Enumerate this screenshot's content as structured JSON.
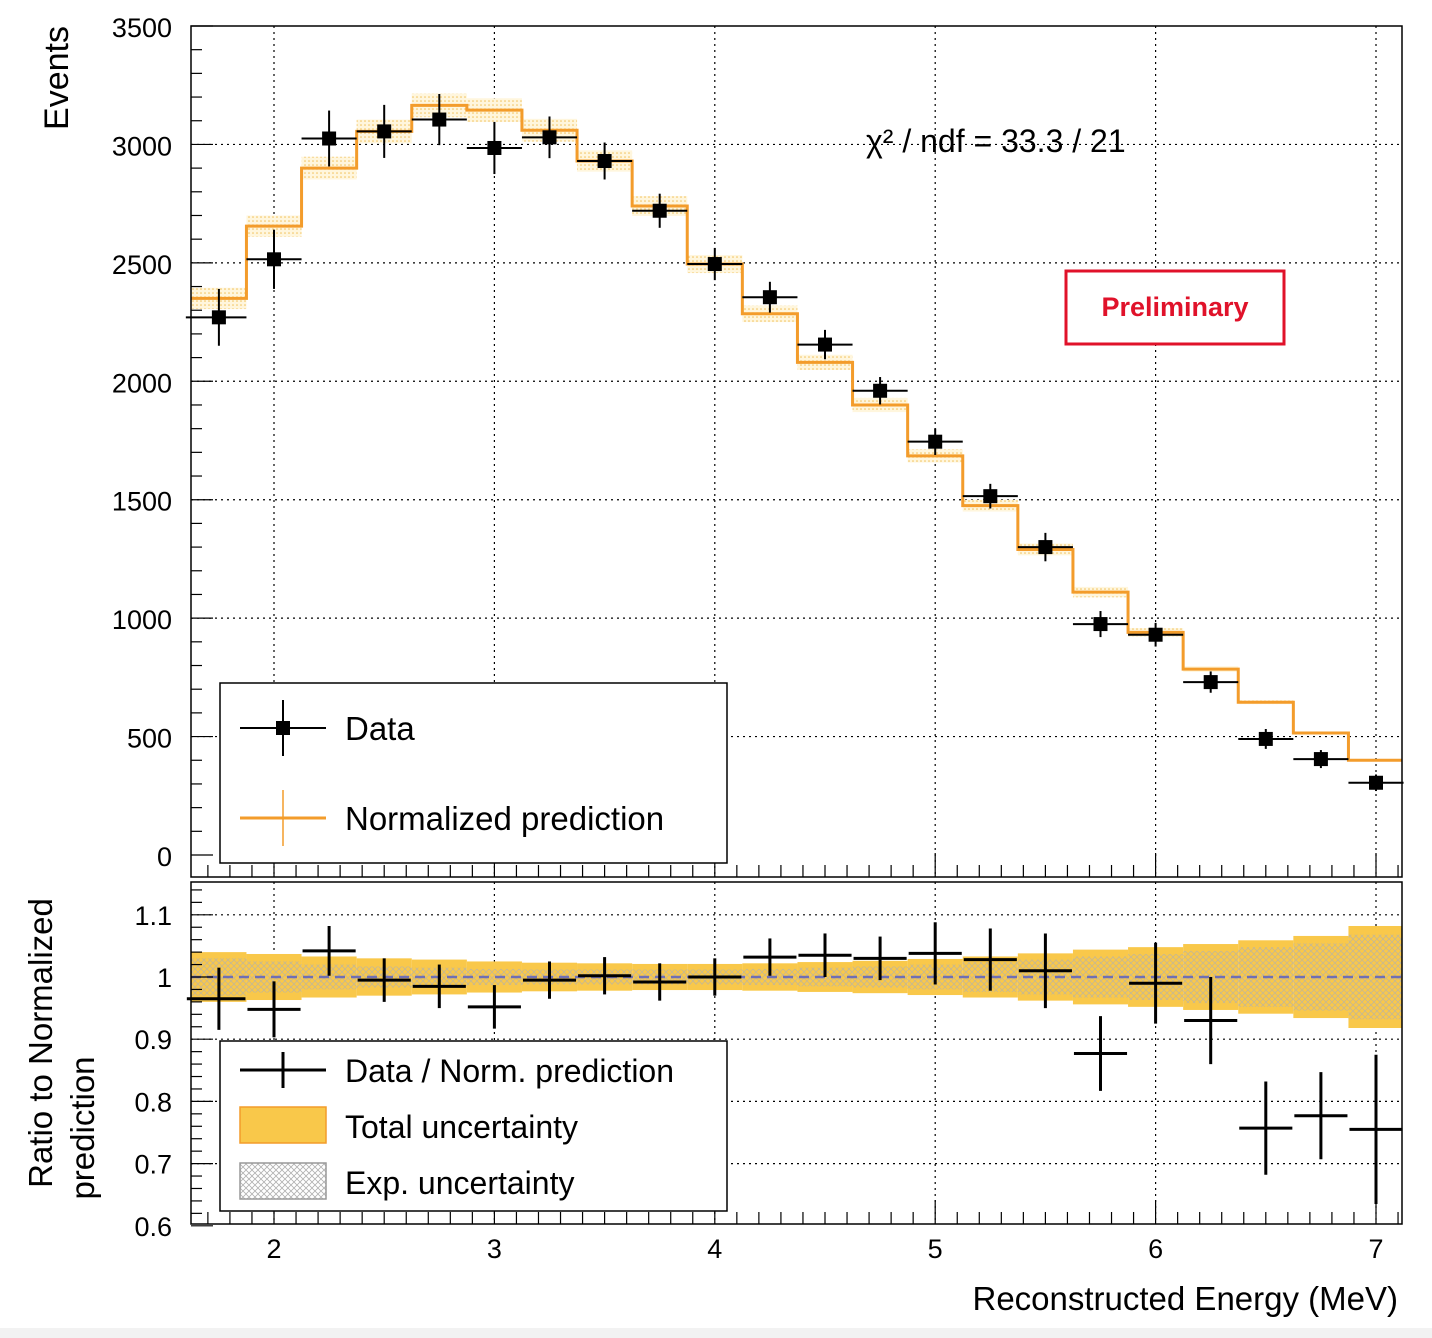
{
  "chart_data": [
    {
      "type": "step-histogram",
      "ylabel": "Events",
      "ylim": [
        0,
        3500
      ],
      "xlim": [
        1.6,
        7.1
      ],
      "x_ticks": [
        2,
        3,
        4,
        5,
        6,
        7
      ],
      "y_ticks": [
        0,
        500,
        1000,
        1500,
        2000,
        2500,
        3000,
        3500
      ],
      "bin_centers": [
        1.75,
        2.0,
        2.25,
        2.5,
        2.75,
        3.0,
        3.25,
        3.5,
        3.75,
        4.0,
        4.25,
        4.5,
        4.75,
        5.0,
        5.25,
        5.5,
        5.75,
        6.0,
        6.25,
        6.5,
        6.75,
        7.0
      ],
      "bin_edges": [
        1.6,
        1.875,
        2.125,
        2.375,
        2.625,
        2.875,
        3.125,
        3.375,
        3.625,
        3.875,
        4.125,
        4.375,
        4.625,
        4.875,
        5.125,
        5.375,
        5.625,
        5.875,
        6.125,
        6.375,
        6.625,
        6.875,
        7.125
      ],
      "series": [
        {
          "name": "Data",
          "values": [
            2270,
            2515,
            3025,
            3055,
            3105,
            2985,
            3030,
            2930,
            2720,
            2495,
            2355,
            2155,
            1960,
            1745,
            1515,
            1300,
            975,
            930,
            730,
            490,
            405,
            305
          ],
          "errors": [
            120,
            125,
            118,
            112,
            108,
            110,
            88,
            78,
            72,
            68,
            65,
            62,
            58,
            56,
            52,
            60,
            55,
            50,
            45,
            42,
            38,
            35
          ]
        },
        {
          "name": "Normalized prediction",
          "values": [
            2350,
            2655,
            2900,
            3055,
            3165,
            3145,
            3060,
            2930,
            2740,
            2495,
            2285,
            2080,
            1900,
            1685,
            1475,
            1290,
            1110,
            940,
            785,
            645,
            515,
            400
          ],
          "band": [
            45,
            45,
            48,
            50,
            50,
            50,
            48,
            45,
            42,
            38,
            35,
            32,
            30,
            28,
            25,
            25,
            22,
            18,
            12,
            8,
            6,
            5
          ]
        }
      ],
      "annotation": "χ² / ndf = 33.3 / 21",
      "stamp": "Preliminary",
      "legend": {
        "position": "bottom-left",
        "entries": [
          "Data",
          "Normalized prediction"
        ]
      }
    },
    {
      "type": "ratio",
      "xlabel": "Reconstructed Energy (MeV)",
      "ylabel_line1": "Ratio to Normalized",
      "ylabel_line2": "prediction",
      "ylim": [
        0.6,
        1.15
      ],
      "x_ticks": [
        2,
        3,
        4,
        5,
        6,
        7
      ],
      "y_ticks": [
        0.6,
        0.7,
        0.8,
        0.9,
        1.0,
        1.1
      ],
      "reference_line": 1.0,
      "ratio_values": [
        0.965,
        0.948,
        1.042,
        0.995,
        0.985,
        0.952,
        0.995,
        1.002,
        0.992,
        1.0,
        1.032,
        1.035,
        1.03,
        1.038,
        1.028,
        1.01,
        0.877,
        0.99,
        0.93,
        0.757,
        0.777,
        0.755
      ],
      "ratio_errors": [
        0.05,
        0.045,
        0.04,
        0.035,
        0.035,
        0.035,
        0.03,
        0.03,
        0.03,
        0.03,
        0.03,
        0.035,
        0.035,
        0.05,
        0.05,
        0.06,
        0.06,
        0.065,
        0.07,
        0.075,
        0.07,
        0.12
      ],
      "total_uncertainty_halfwidth": [
        0.04,
        0.037,
        0.033,
        0.03,
        0.028,
        0.025,
        0.023,
        0.022,
        0.021,
        0.021,
        0.022,
        0.024,
        0.026,
        0.029,
        0.033,
        0.038,
        0.044,
        0.048,
        0.053,
        0.059,
        0.066,
        0.082
      ],
      "exp_uncertainty_halfwidth": [
        0.03,
        0.025,
        0.02,
        0.017,
        0.015,
        0.013,
        0.012,
        0.012,
        0.012,
        0.012,
        0.013,
        0.015,
        0.017,
        0.02,
        0.024,
        0.028,
        0.033,
        0.037,
        0.042,
        0.048,
        0.054,
        0.068
      ],
      "legend": {
        "position": "bottom-left",
        "entries": [
          "Data / Norm. prediction",
          "Total uncertainty",
          "Exp. uncertainty"
        ]
      }
    }
  ],
  "colors": {
    "prediction": "#f39c2b",
    "band_fill": "#f9c84a",
    "band_light": "#fbe6a8",
    "ref_line": "#6f6fb3",
    "stamp": "#e0122a",
    "data": "#000000"
  }
}
